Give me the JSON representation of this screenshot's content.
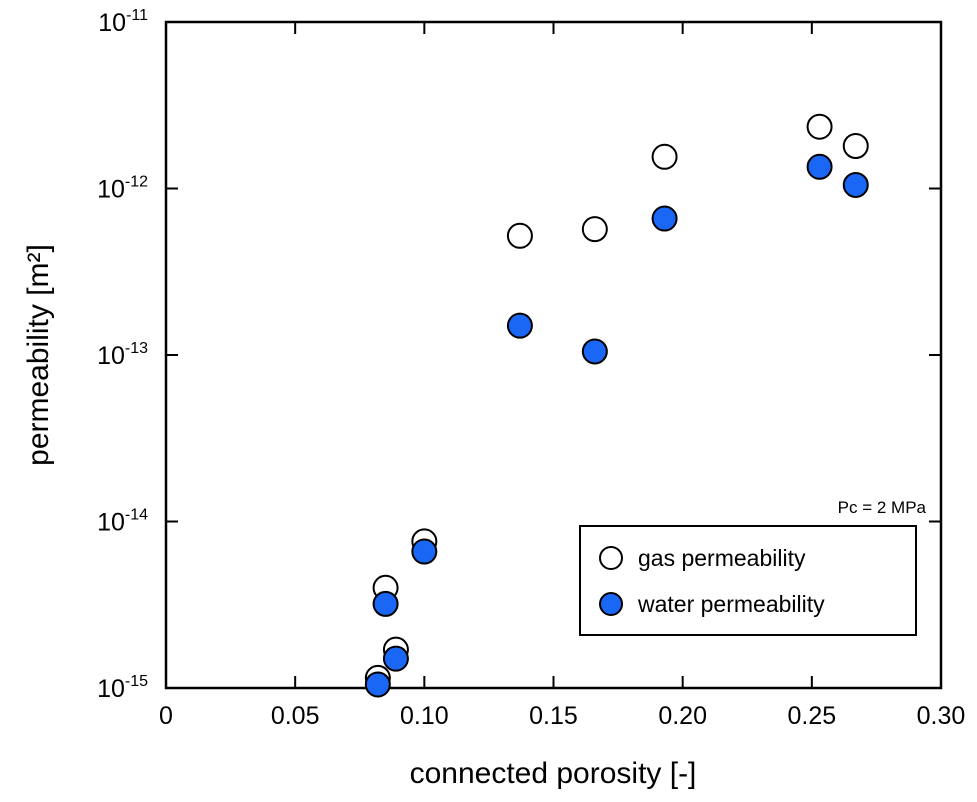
{
  "chart_data": {
    "type": "scatter",
    "xlabel": "connected porosity [-]",
    "ylabel": "permeability [m²]",
    "xlim": [
      0,
      0.3
    ],
    "ylim": [
      1e-15,
      1e-11
    ],
    "yscale": "log",
    "grid": false,
    "legend_position": "bottom-right",
    "x_ticks": [
      {
        "value": 0,
        "label": "0"
      },
      {
        "value": 0.05,
        "label": "0.05"
      },
      {
        "value": 0.1,
        "label": "0.10"
      },
      {
        "value": 0.15,
        "label": "0.15"
      },
      {
        "value": 0.2,
        "label": "0.20"
      },
      {
        "value": 0.25,
        "label": "0.25"
      },
      {
        "value": 0.3,
        "label": "0.30"
      }
    ],
    "y_ticks": [
      {
        "value": 1e-15,
        "base": "10",
        "exp": "-15"
      },
      {
        "value": 1e-14,
        "base": "10",
        "exp": "-14"
      },
      {
        "value": 1e-13,
        "base": "10",
        "exp": "-13"
      },
      {
        "value": 1e-12,
        "base": "10",
        "exp": "-12"
      },
      {
        "value": 1e-11,
        "base": "10",
        "exp": "-11"
      }
    ],
    "annotation": "Pc = 2 MPa",
    "series": [
      {
        "name": "gas permeability",
        "marker": "open-circle",
        "fill": "#ffffff",
        "stroke": "#000000",
        "points": [
          [
            0.082,
            1.15e-15
          ],
          [
            0.085,
            4e-15
          ],
          [
            0.089,
            1.7e-15
          ],
          [
            0.1,
            7.6e-15
          ],
          [
            0.137,
            5.2e-13
          ],
          [
            0.166,
            5.7e-13
          ],
          [
            0.193,
            1.55e-12
          ],
          [
            0.253,
            2.35e-12
          ],
          [
            0.267,
            1.8e-12
          ]
        ]
      },
      {
        "name": "water permeability",
        "marker": "filled-circle",
        "fill": "#1a66f5",
        "stroke": "#000000",
        "points": [
          [
            0.082,
            1.05e-15
          ],
          [
            0.085,
            3.2e-15
          ],
          [
            0.089,
            1.5e-15
          ],
          [
            0.1,
            6.6e-15
          ],
          [
            0.137,
            1.5e-13
          ],
          [
            0.166,
            1.05e-13
          ],
          [
            0.193,
            6.6e-13
          ],
          [
            0.253,
            1.35e-12
          ],
          [
            0.267,
            1.05e-12
          ]
        ]
      }
    ]
  }
}
